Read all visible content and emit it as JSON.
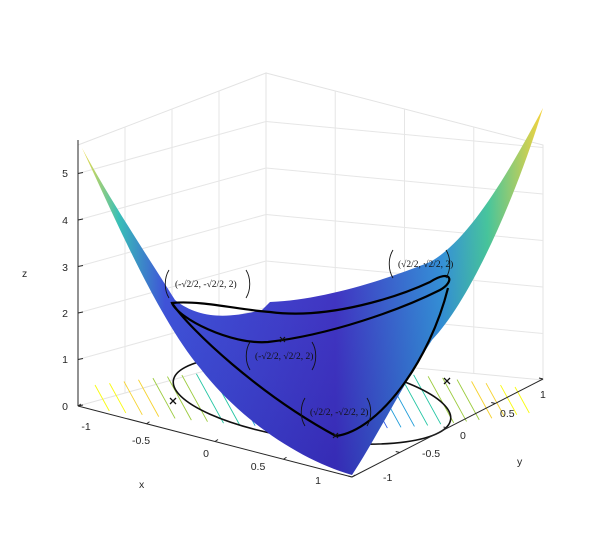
{
  "chart_data": {
    "type": "surface",
    "function": "z = x^2 + y^2 + ... (saddle-like surface)",
    "axes": {
      "x": {
        "label": "x",
        "ticks": [
          "-1",
          "-0.5",
          "0",
          "0.5",
          "1"
        ],
        "range": [
          -1,
          1
        ]
      },
      "y": {
        "label": "y",
        "ticks": [
          "-1",
          "-0.5",
          "0",
          "0.5",
          "1"
        ],
        "range": [
          -1,
          1
        ]
      },
      "z": {
        "label": "z",
        "ticks": [
          "0",
          "1",
          "2",
          "3",
          "4",
          "5"
        ],
        "range": [
          0,
          5.5
        ]
      }
    },
    "grid": true,
    "colormap": "parula",
    "colormap_stops": [
      "#3e26a8",
      "#2f5eea",
      "#1d9bd8",
      "#22c5a3",
      "#9bcb3c",
      "#f6d22d",
      "#f9fb0e"
    ],
    "curve_color": "#000000",
    "points": [
      {
        "x": -0.7071,
        "y": -0.7071,
        "z": 2,
        "label": "(-√2/2, -√2/2, 2)"
      },
      {
        "x": 0.7071,
        "y": 0.7071,
        "z": 2,
        "label": "(√2/2, √2/2, 2)"
      },
      {
        "x": -0.7071,
        "y": 0.7071,
        "z": 2,
        "label": "(-√2/2, √2/2, 2)"
      },
      {
        "x": 0.7071,
        "y": -0.7071,
        "z": 2,
        "label": "(√2/2, -√2/2, 2)"
      }
    ]
  }
}
